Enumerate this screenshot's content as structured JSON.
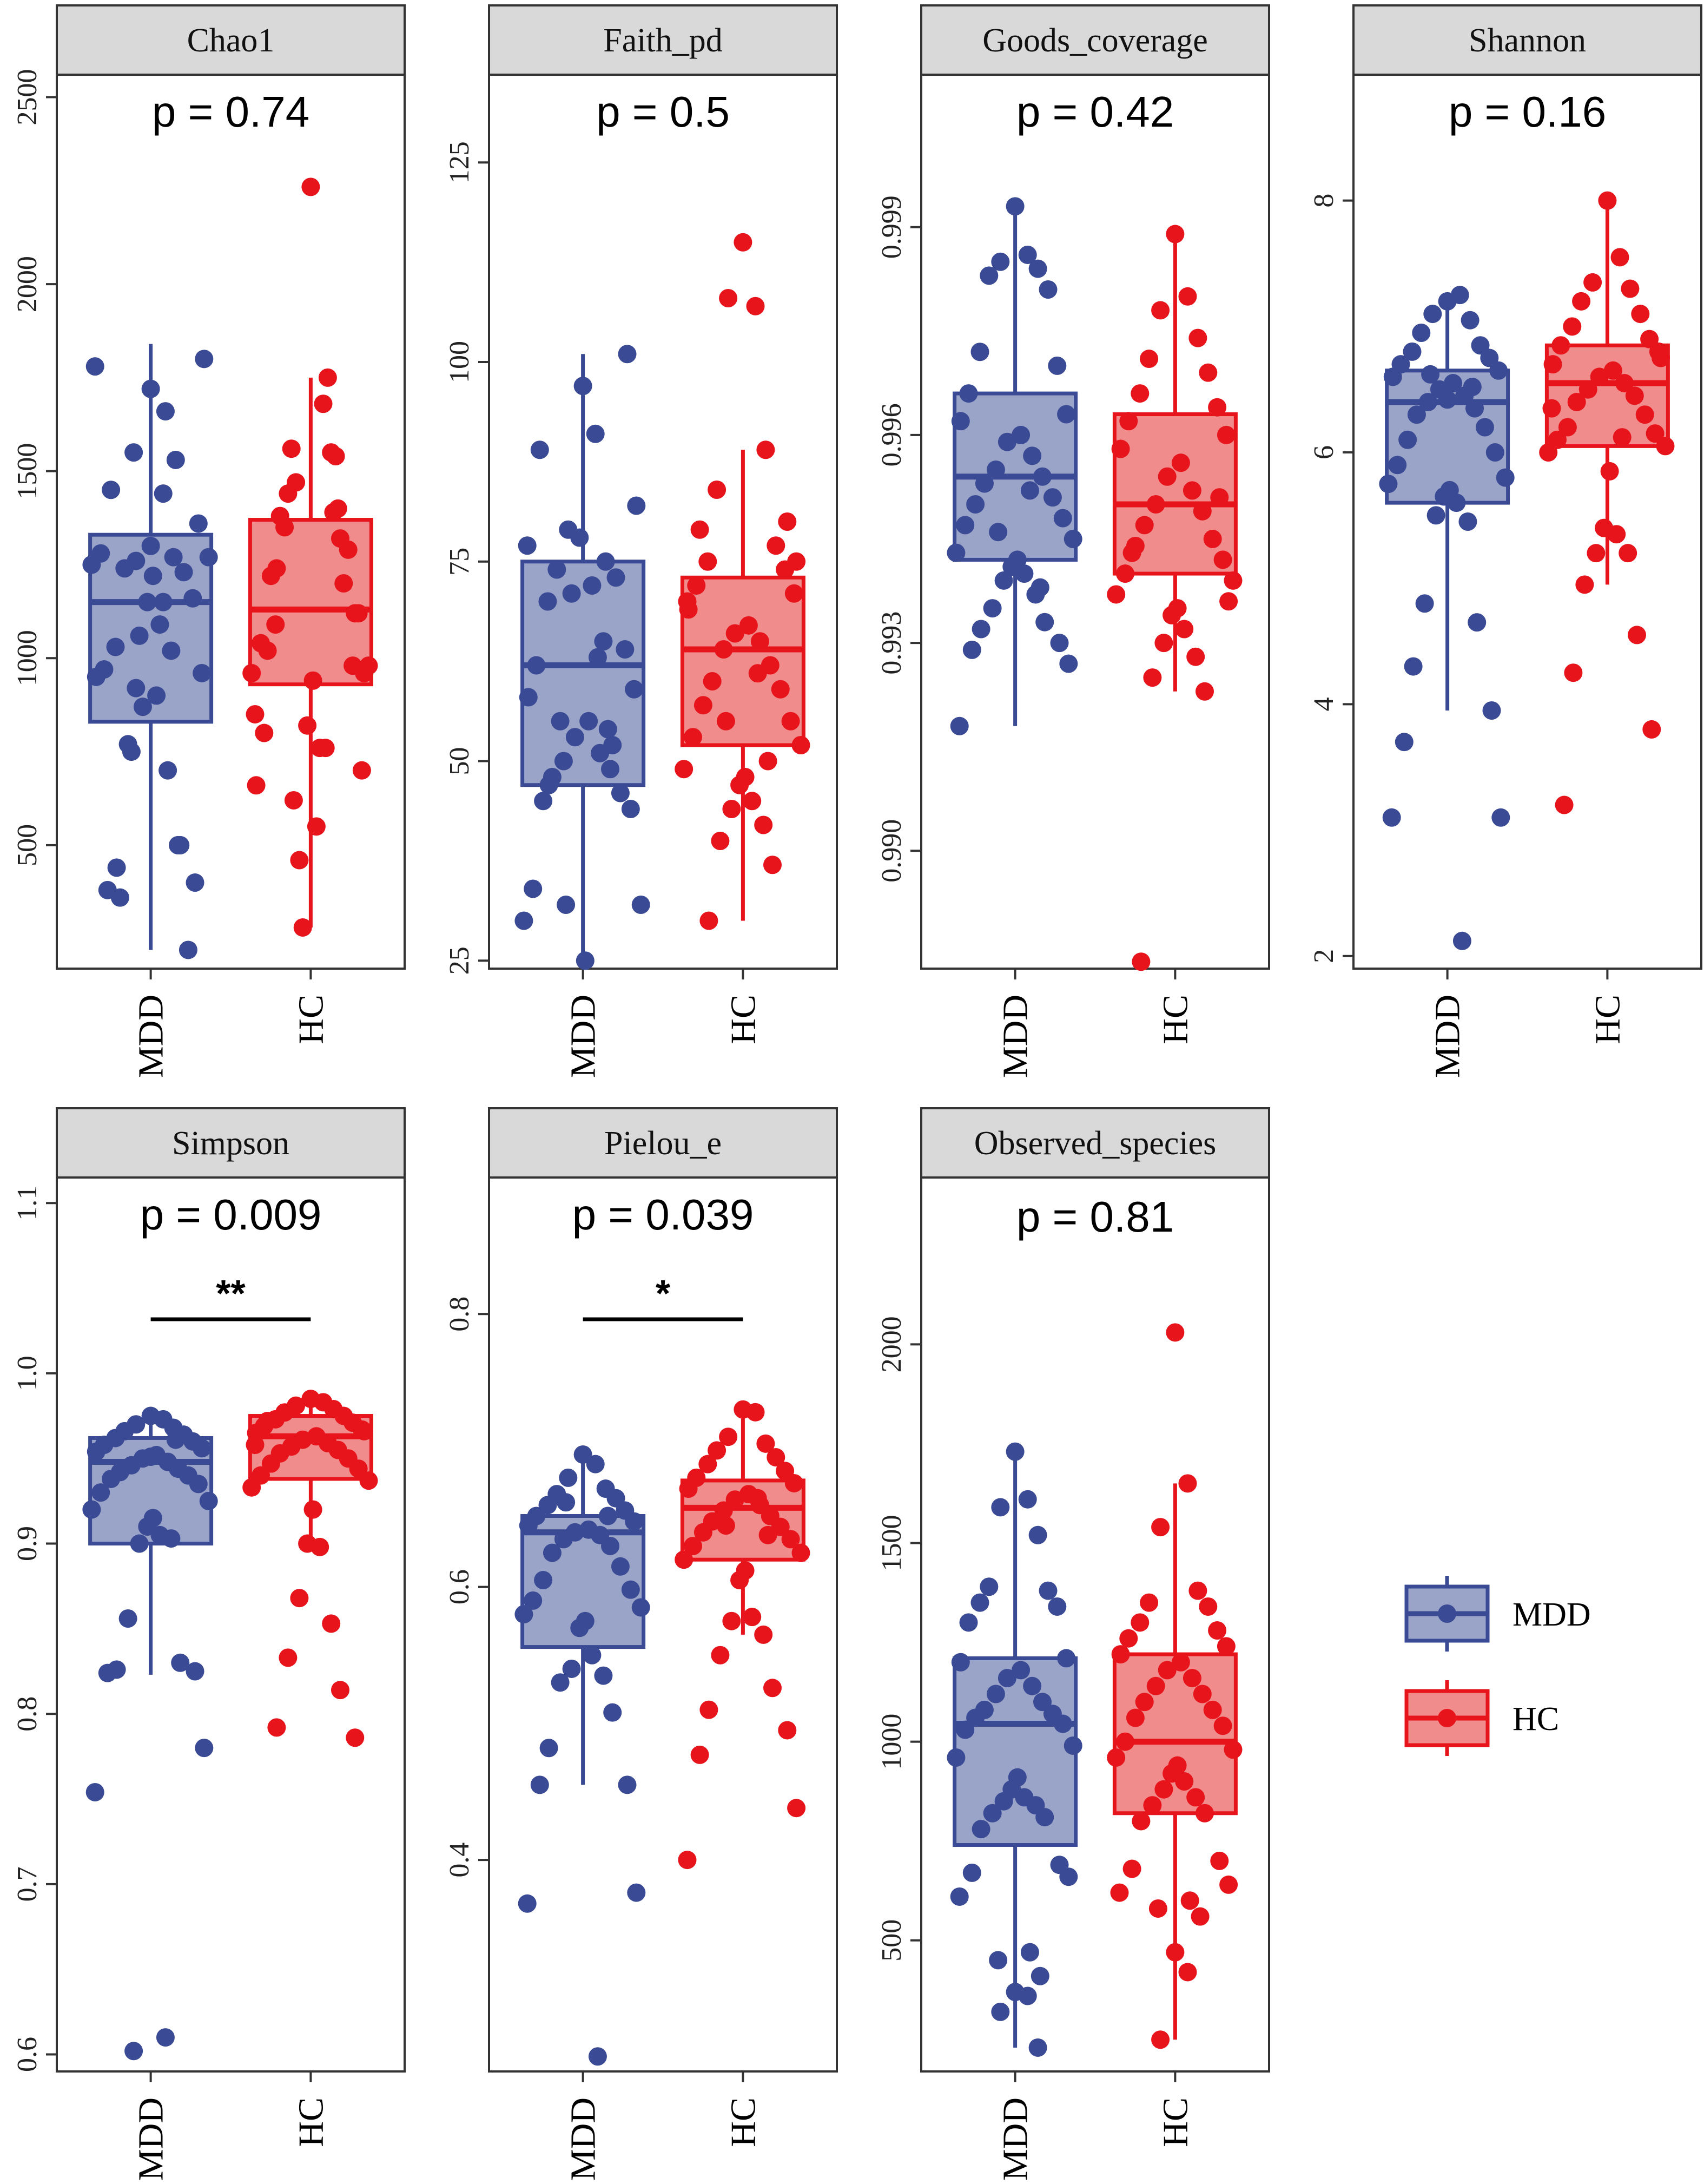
{
  "colors": {
    "MDD": "#3a4a94",
    "MDD_fill": "#9aa3c8",
    "HC": "#e8141c",
    "HC_fill": "#f08c8c",
    "strip_bg": "#d9d9d9",
    "frame": "#333333"
  },
  "legend": {
    "items": [
      "MDD",
      "HC"
    ]
  },
  "chart_data": [
    {
      "type": "box",
      "title": "Chao1",
      "pvalue": "p = 0.74",
      "significance": "",
      "categories": [
        "MDD",
        "HC"
      ],
      "ylim": [
        170,
        2560
      ],
      "yticks": [
        500,
        1000,
        1500,
        2000,
        2500
      ],
      "ytick_labels": [
        "500",
        "1000",
        "1500",
        "2000",
        "2500"
      ],
      "series": [
        {
          "name": "MDD",
          "box": {
            "q1": 830,
            "median": 1150,
            "q3": 1330,
            "whisker_low": 220,
            "whisker_high": 1840
          },
          "points": [
            1720,
            1440,
            1260,
            1270,
            1240,
            1230,
            1030,
            1160,
            970,
            960,
            950,
            900,
            870,
            700,
            750,
            500,
            360,
            220,
            1450,
            1360,
            1280,
            1270,
            1250,
            1220,
            1150,
            1090,
            1060,
            1020,
            770,
            500,
            440,
            400,
            380,
            1800,
            1780,
            1660,
            1550,
            1530,
            1300,
            1150,
            920
          ]
        },
        {
          "name": "HC",
          "box": {
            "q1": 930,
            "median": 1130,
            "q3": 1370,
            "whisker_low": 280,
            "whisker_high": 1750
          },
          "points": [
            2260,
            1680,
            1470,
            1390,
            1350,
            1200,
            1090,
            980,
            800,
            700,
            660,
            550,
            280,
            1750,
            1560,
            1400,
            1380,
            1290,
            1220,
            1120,
            1040,
            980,
            960,
            940,
            820,
            760,
            460,
            1550,
            1440,
            1320,
            1240,
            1120,
            1020,
            960,
            850,
            760,
            620,
            1540
          ]
        }
      ]
    },
    {
      "type": "box",
      "title": "Faith_pd",
      "pvalue": "p = 0.5",
      "significance": "",
      "categories": [
        "MDD",
        "HC"
      ],
      "ylim": [
        24,
        136
      ],
      "yticks": [
        25,
        50,
        75,
        100,
        125
      ],
      "ytick_labels": [
        "25",
        "50",
        "75",
        "100",
        "125"
      ],
      "series": [
        {
          "name": "MDD",
          "box": {
            "q1": 47,
            "median": 62,
            "q3": 75,
            "whisker_low": 25,
            "whisker_high": 101
          },
          "points": [
            97,
            91,
            79,
            75,
            74,
            73,
            70,
            64,
            62,
            59,
            58,
            55,
            53,
            51,
            50,
            49,
            48,
            46,
            45,
            44,
            34,
            32,
            30,
            25,
            78,
            72,
            71,
            65,
            55,
            52,
            47,
            101,
            89,
            82,
            77,
            63,
            32,
            54
          ]
        },
        {
          "name": "HC",
          "box": {
            "q1": 52,
            "median": 64,
            "q3": 73,
            "whisker_low": 30,
            "whisker_high": 89
          },
          "points": [
            115,
            107,
            108,
            89,
            84,
            77,
            75,
            74,
            72,
            71,
            69,
            67,
            66,
            65,
            64,
            62,
            60,
            59,
            57,
            55,
            53,
            52,
            49,
            48,
            47,
            45,
            44,
            42,
            40,
            37,
            30,
            80,
            79,
            75,
            70,
            61,
            55,
            50
          ]
        }
      ]
    },
    {
      "type": "box",
      "title": "Goods_coverage",
      "pvalue": "p = 0.42",
      "significance": "",
      "categories": [
        "MDD",
        "HC"
      ],
      "ylim": [
        0.9883,
        1.0012
      ],
      "yticks": [
        0.99,
        0.993,
        0.996,
        0.999
      ],
      "ytick_labels": [
        "0.990",
        "0.993",
        "0.996",
        "0.999"
      ],
      "series": [
        {
          "name": "MDD",
          "box": {
            "q1": 0.9942,
            "median": 0.9954,
            "q3": 0.9966,
            "whisker_low": 0.9918,
            "whisker_high": 0.9993
          },
          "points": [
            0.9993,
            0.9986,
            0.9985,
            0.9984,
            0.9983,
            0.9981,
            0.9972,
            0.997,
            0.9966,
            0.9963,
            0.9962,
            0.996,
            0.9959,
            0.9957,
            0.9955,
            0.9954,
            0.9953,
            0.9951,
            0.995,
            0.9948,
            0.9947,
            0.9945,
            0.9943,
            0.9942,
            0.9941,
            0.994,
            0.9939,
            0.9937,
            0.9935,
            0.9933,
            0.9932,
            0.993,
            0.9929,
            0.9927,
            0.9918,
            0.9952,
            0.9946,
            0.9938
          ]
        },
        {
          "name": "HC",
          "box": {
            "q1": 0.994,
            "median": 0.995,
            "q3": 0.9963,
            "whisker_low": 0.9923,
            "whisker_high": 0.9989
          },
          "points": [
            0.9989,
            0.998,
            0.9978,
            0.9974,
            0.9971,
            0.9969,
            0.9966,
            0.9964,
            0.9962,
            0.996,
            0.9958,
            0.9956,
            0.9954,
            0.9952,
            0.995,
            0.9949,
            0.9947,
            0.9945,
            0.9944,
            0.9942,
            0.994,
            0.9939,
            0.9937,
            0.9935,
            0.9934,
            0.9932,
            0.993,
            0.9928,
            0.9925,
            0.9923,
            0.9884,
            0.9951,
            0.9943,
            0.9936
          ]
        }
      ]
    },
    {
      "type": "box",
      "title": "Shannon",
      "pvalue": "p = 0.16",
      "significance": "",
      "categories": [
        "MDD",
        "HC"
      ],
      "ylim": [
        1.9,
        9.0
      ],
      "yticks": [
        2,
        4,
        6,
        8
      ],
      "ytick_labels": [
        "2",
        "4",
        "6",
        "8"
      ],
      "series": [
        {
          "name": "MDD",
          "box": {
            "q1": 5.6,
            "median": 6.4,
            "q3": 6.65,
            "whisker_low": 3.95,
            "whisker_high": 7.25
          },
          "points": [
            7.2,
            7.25,
            7.1,
            7.05,
            6.95,
            6.85,
            6.8,
            6.75,
            6.7,
            6.65,
            6.6,
            6.55,
            6.5,
            6.45,
            6.4,
            6.35,
            6.3,
            6.2,
            6.1,
            6.0,
            5.9,
            5.8,
            5.75,
            5.7,
            5.65,
            5.6,
            5.5,
            5.45,
            4.8,
            4.65,
            4.3,
            3.95,
            3.7,
            3.1,
            3.1,
            2.12,
            6.62,
            6.52,
            6.42
          ]
        },
        {
          "name": "HC",
          "box": {
            "q1": 6.05,
            "median": 6.55,
            "q3": 6.85,
            "whisker_low": 4.95,
            "whisker_high": 8.0
          },
          "points": [
            8.0,
            7.55,
            7.35,
            7.3,
            7.2,
            7.1,
            7.0,
            6.9,
            6.85,
            6.8,
            6.7,
            6.65,
            6.6,
            6.55,
            6.5,
            6.45,
            6.4,
            6.3,
            6.2,
            6.15,
            6.1,
            6.05,
            6.0,
            5.85,
            5.4,
            5.35,
            5.2,
            5.2,
            4.95,
            4.55,
            4.25,
            3.8,
            3.2,
            6.75,
            6.35,
            6.12
          ]
        }
      ]
    },
    {
      "type": "box",
      "title": "Simpson",
      "pvalue": "p = 0.009",
      "significance": "**",
      "categories": [
        "MDD",
        "HC"
      ],
      "ylim": [
        0.59,
        1.115
      ],
      "yticks": [
        0.6,
        0.7,
        0.8,
        0.9,
        1.0,
        1.1
      ],
      "ytick_labels": [
        "0.6",
        "0.7",
        "0.8",
        "0.9",
        "1.0",
        "1.1"
      ],
      "series": [
        {
          "name": "MDD",
          "box": {
            "q1": 0.9,
            "median": 0.948,
            "q3": 0.962,
            "whisker_low": 0.823,
            "whisker_high": 0.975
          },
          "points": [
            0.975,
            0.973,
            0.97,
            0.968,
            0.966,
            0.964,
            0.962,
            0.96,
            0.958,
            0.956,
            0.954,
            0.952,
            0.95,
            0.948,
            0.946,
            0.944,
            0.942,
            0.94,
            0.938,
            0.935,
            0.93,
            0.925,
            0.92,
            0.915,
            0.91,
            0.905,
            0.9,
            0.903,
            0.856,
            0.83,
            0.826,
            0.825,
            0.824,
            0.78,
            0.754,
            0.61,
            0.602,
            0.961,
            0.951
          ]
        },
        {
          "name": "HC",
          "box": {
            "q1": 0.938,
            "median": 0.963,
            "q3": 0.975,
            "whisker_low": 0.9,
            "whisker_high": 0.985
          },
          "points": [
            0.985,
            0.983,
            0.981,
            0.979,
            0.977,
            0.975,
            0.973,
            0.971,
            0.969,
            0.967,
            0.965,
            0.963,
            0.961,
            0.959,
            0.957,
            0.955,
            0.953,
            0.95,
            0.947,
            0.944,
            0.94,
            0.937,
            0.933,
            0.92,
            0.9,
            0.898,
            0.868,
            0.853,
            0.833,
            0.814,
            0.792,
            0.786,
            0.972,
            0.966,
            0.958
          ]
        }
      ]
    },
    {
      "type": "box",
      "title": "Pielou_e",
      "pvalue": "p = 0.039",
      "significance": "*",
      "categories": [
        "MDD",
        "HC"
      ],
      "ylim": [
        0.245,
        0.9
      ],
      "yticks": [
        0.4,
        0.6,
        0.8
      ],
      "ytick_labels": [
        "0.4",
        "0.6",
        "0.8"
      ],
      "series": [
        {
          "name": "MDD",
          "box": {
            "q1": 0.556,
            "median": 0.64,
            "q3": 0.652,
            "whisker_low": 0.455,
            "whisker_high": 0.695
          },
          "points": [
            0.697,
            0.69,
            0.68,
            0.672,
            0.668,
            0.665,
            0.66,
            0.656,
            0.652,
            0.648,
            0.645,
            0.642,
            0.64,
            0.638,
            0.635,
            0.63,
            0.625,
            0.615,
            0.605,
            0.598,
            0.59,
            0.585,
            0.58,
            0.575,
            0.57,
            0.55,
            0.54,
            0.535,
            0.53,
            0.508,
            0.482,
            0.455,
            0.455,
            0.376,
            0.368,
            0.256,
            0.662,
            0.652
          ]
        },
        {
          "name": "HC",
          "box": {
            "q1": 0.62,
            "median": 0.658,
            "q3": 0.678,
            "whisker_low": 0.565,
            "whisker_high": 0.728
          },
          "points": [
            0.73,
            0.728,
            0.71,
            0.705,
            0.7,
            0.695,
            0.69,
            0.685,
            0.68,
            0.676,
            0.672,
            0.668,
            0.664,
            0.66,
            0.656,
            0.652,
            0.648,
            0.644,
            0.64,
            0.635,
            0.63,
            0.625,
            0.62,
            0.612,
            0.605,
            0.578,
            0.575,
            0.565,
            0.55,
            0.526,
            0.51,
            0.495,
            0.477,
            0.438,
            0.4,
            0.665,
            0.645,
            0.638
          ]
        }
      ]
    },
    {
      "type": "box",
      "title": "Observed_species",
      "pvalue": "p = 0.81",
      "significance": "",
      "categories": [
        "MDD",
        "HC"
      ],
      "ylim": [
        170,
        2420
      ],
      "yticks": [
        500,
        1000,
        1500,
        2000
      ],
      "ytick_labels": [
        "500",
        "1000",
        "1500",
        "2000"
      ],
      "series": [
        {
          "name": "MDD",
          "box": {
            "q1": 740,
            "median": 1045,
            "q3": 1210,
            "whisker_low": 230,
            "whisker_high": 1730
          },
          "points": [
            1730,
            1610,
            1590,
            1520,
            1390,
            1380,
            1350,
            1340,
            1300,
            1210,
            1200,
            1180,
            1160,
            1140,
            1120,
            1100,
            1080,
            1070,
            1060,
            1045,
            1030,
            990,
            960,
            910,
            880,
            860,
            850,
            840,
            820,
            810,
            780,
            690,
            670,
            660,
            610,
            470,
            450,
            410,
            370,
            360,
            320,
            230
          ]
        },
        {
          "name": "HC",
          "box": {
            "q1": 820,
            "median": 1000,
            "q3": 1220,
            "whisker_low": 250,
            "whisker_high": 1650
          },
          "points": [
            2030,
            1650,
            1540,
            1380,
            1350,
            1340,
            1300,
            1280,
            1260,
            1240,
            1220,
            1200,
            1180,
            1160,
            1140,
            1120,
            1100,
            1080,
            1060,
            1040,
            1000,
            980,
            960,
            940,
            920,
            900,
            880,
            860,
            840,
            820,
            800,
            700,
            680,
            640,
            620,
            600,
            580,
            560,
            470,
            420,
            250
          ]
        }
      ]
    }
  ]
}
